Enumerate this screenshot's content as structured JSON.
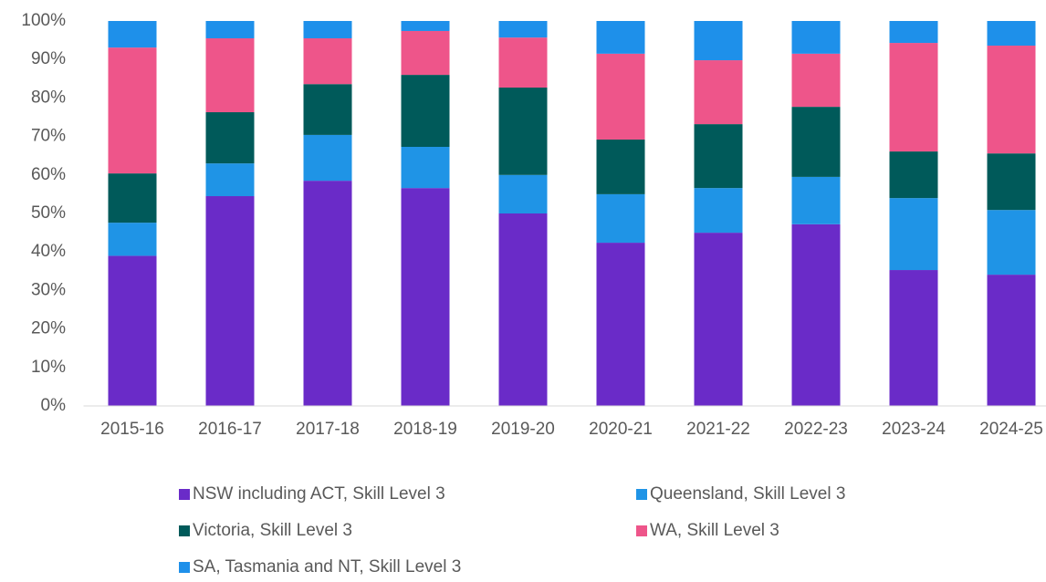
{
  "chart_data": {
    "type": "stacked_bar",
    "categories": [
      "2015-16",
      "2016-17",
      "2017-18",
      "2018-19",
      "2019-20",
      "2020-21",
      "2021-22",
      "2022-23",
      "2023-24",
      "2024-25"
    ],
    "series": [
      {
        "name": "NSW including ACT, Skill Level 3",
        "color": "#6a2bc8",
        "values": [
          39,
          54.5,
          58.5,
          56.6,
          50,
          42.4,
          45,
          47.2,
          35.3,
          34.1
        ]
      },
      {
        "name": "Queensland, Skill Level 3",
        "color": "#1f94e6",
        "values": [
          8.6,
          8.5,
          11.9,
          10.7,
          10,
          12.6,
          11.6,
          12.3,
          18.7,
          16.8
        ]
      },
      {
        "name": "Victoria, Skill Level 3",
        "color": "#005a5a",
        "values": [
          12.8,
          13.3,
          13.2,
          18.7,
          22.7,
          14.2,
          16.6,
          18.2,
          12.1,
          14.7
        ]
      },
      {
        "name": "WA, Skill Level 3",
        "color": "#ee558a",
        "values": [
          32.7,
          19.2,
          11.9,
          11.4,
          13,
          22.3,
          16.6,
          13.8,
          28.2,
          28
        ]
      },
      {
        "name": "SA, Tasmania and NT, Skill Level 3",
        "color": "#1e90ea",
        "values": [
          6.9,
          4.5,
          4.5,
          2.6,
          4.3,
          8.5,
          10.2,
          8.5,
          5.7,
          6.4
        ]
      }
    ],
    "ylim": [
      0,
      100
    ],
    "yticks": [
      {
        "value": 0,
        "label": "0%"
      },
      {
        "value": 10,
        "label": "10%"
      },
      {
        "value": 20,
        "label": "20%"
      },
      {
        "value": 30,
        "label": "30%"
      },
      {
        "value": 40,
        "label": "40%"
      },
      {
        "value": 50,
        "label": "50%"
      },
      {
        "value": 60,
        "label": "60%"
      },
      {
        "value": 70,
        "label": "70%"
      },
      {
        "value": 80,
        "label": "80%"
      },
      {
        "value": 90,
        "label": "90%"
      },
      {
        "value": 100,
        "label": "100%"
      }
    ],
    "legend": "bottom"
  }
}
